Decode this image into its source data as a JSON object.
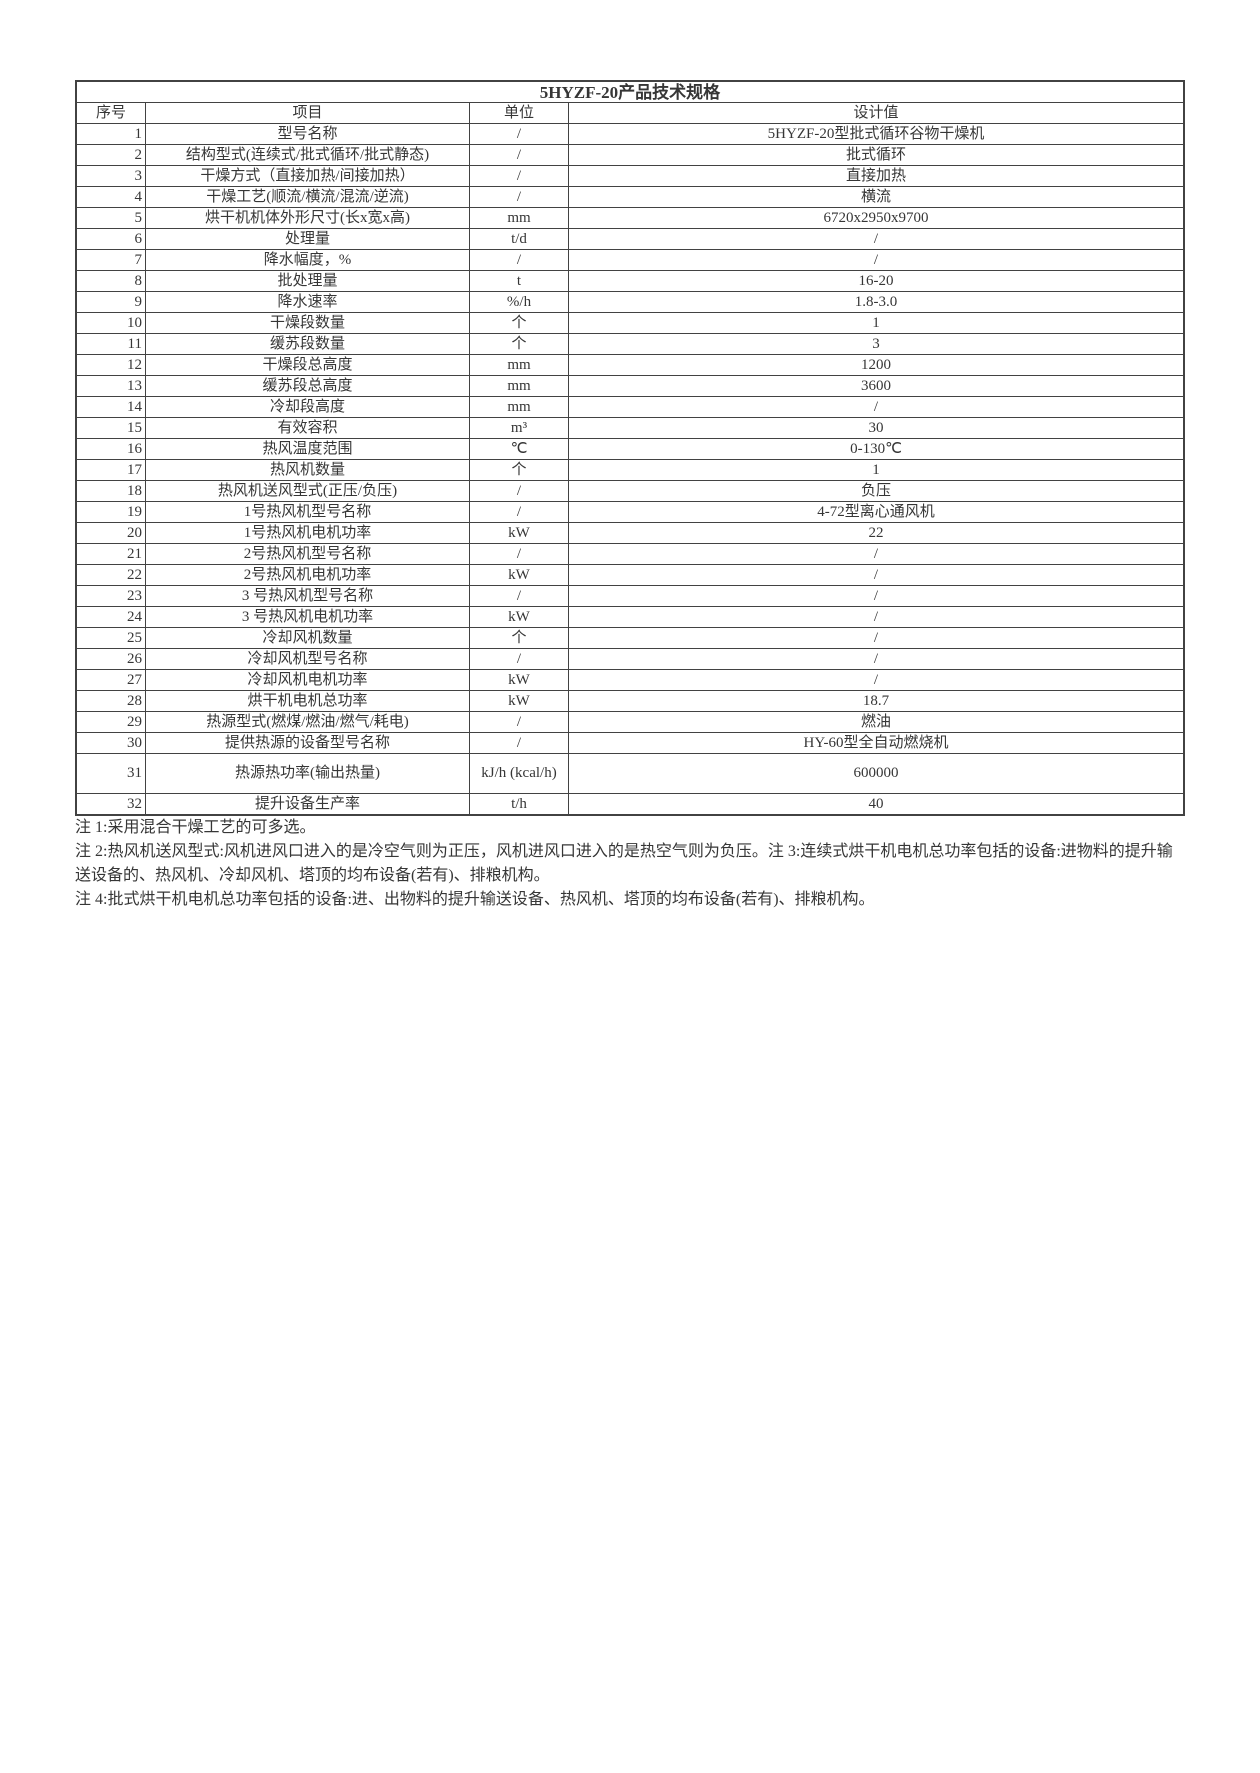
{
  "title": "5HYZF-20产品技术规格",
  "headers": {
    "seq": "序号",
    "item": "项目",
    "unit": "单位",
    "value": "设计值"
  },
  "rows": [
    {
      "seq": "1",
      "item": "型号名称",
      "unit": "/",
      "value": "5HYZF-20型批式循环谷物干燥机"
    },
    {
      "seq": "2",
      "item": "结构型式(连续式/批式循环/批式静态)",
      "unit": "/",
      "value": "批式循环"
    },
    {
      "seq": "3",
      "item": "干燥方式（直接加热/间接加热）",
      "unit": "/",
      "value": "直接加热"
    },
    {
      "seq": "4",
      "item": "干燥工艺(顺流/横流/混流/逆流)",
      "unit": "/",
      "value": "横流"
    },
    {
      "seq": "5",
      "item": "烘干机机体外形尺寸(长x宽x高)",
      "unit": "mm",
      "value": "6720x2950x9700"
    },
    {
      "seq": "6",
      "item": "处理量",
      "unit": "t/d",
      "value": "/"
    },
    {
      "seq": "7",
      "item": "降水幅度，%",
      "unit": "/",
      "value": "/"
    },
    {
      "seq": "8",
      "item": "批处理量",
      "unit": "t",
      "value": "16-20"
    },
    {
      "seq": "9",
      "item": "降水速率",
      "unit": "%/h",
      "value": "1.8-3.0"
    },
    {
      "seq": "10",
      "item": "干燥段数量",
      "unit": "个",
      "value": "1"
    },
    {
      "seq": "11",
      "item": "缓苏段数量",
      "unit": "个",
      "value": "3"
    },
    {
      "seq": "12",
      "item": "干燥段总高度",
      "unit": "mm",
      "value": "1200"
    },
    {
      "seq": "13",
      "item": "缓苏段总高度",
      "unit": "mm",
      "value": "3600"
    },
    {
      "seq": "14",
      "item": "冷却段高度",
      "unit": "mm",
      "value": "/"
    },
    {
      "seq": "15",
      "item": "有效容积",
      "unit": "m³",
      "value": "30"
    },
    {
      "seq": "16",
      "item": "热风温度范围",
      "unit": "℃",
      "value": "0-130℃"
    },
    {
      "seq": "17",
      "item": "热风机数量",
      "unit": "个",
      "value": "1"
    },
    {
      "seq": "18",
      "item": "热风机送风型式(正压/负压)",
      "unit": "/",
      "value": "负压"
    },
    {
      "seq": "19",
      "item": "1号热风机型号名称",
      "unit": "/",
      "value": "4-72型离心通风机"
    },
    {
      "seq": "20",
      "item": "1号热风机电机功率",
      "unit": "kW",
      "value": "22"
    },
    {
      "seq": "21",
      "item": "2号热风机型号名称",
      "unit": "/",
      "value": "/"
    },
    {
      "seq": "22",
      "item": "2号热风机电机功率",
      "unit": "kW",
      "value": "/"
    },
    {
      "seq": "23",
      "item": "3 号热风机型号名称",
      "unit": "/",
      "value": "/"
    },
    {
      "seq": "24",
      "item": "3 号热风机电机功率",
      "unit": "kW",
      "value": "/"
    },
    {
      "seq": "25",
      "item": "冷却风机数量",
      "unit": "个",
      "value": "/"
    },
    {
      "seq": "26",
      "item": "冷却风机型号名称",
      "unit": "/",
      "value": "/"
    },
    {
      "seq": "27",
      "item": "冷却风机电机功率",
      "unit": "kW",
      "value": "/"
    },
    {
      "seq": "28",
      "item": "烘干机电机总功率",
      "unit": "kW",
      "value": "18.7"
    },
    {
      "seq": "29",
      "item": "热源型式(燃煤/燃油/燃气/耗电)",
      "unit": "/",
      "value": "燃油"
    },
    {
      "seq": "30",
      "item": "提供热源的设备型号名称",
      "unit": "/",
      "value": "HY-60型全自动燃烧机"
    },
    {
      "seq": "31",
      "item": "热源热功率(输出热量)",
      "unit": "kJ/h (kcal/h)",
      "value": "600000",
      "tall": true
    },
    {
      "seq": "32",
      "item": "提升设备生产率",
      "unit": "t/h",
      "value": "40"
    }
  ],
  "notes": [
    "注 1:采用混合干燥工艺的可多选。",
    "注 2:热风机送风型式:风机进风口进入的是冷空气则为正压，风机进风口进入的是热空气则为负压。注 3:连续式烘干机电机总功率包括的设备:进物料的提升输送设备的、热风机、冷却风机、塔顶的均布设备(若有)、排粮机构。",
    "注 4:批式烘干机电机总功率包括的设备:进、出物料的提升输送设备、热风机、塔顶的均布设备(若有)、排粮机构。"
  ],
  "styles": {
    "border_color": "#424242",
    "text_color": "#363636",
    "background": "#ffffff"
  }
}
